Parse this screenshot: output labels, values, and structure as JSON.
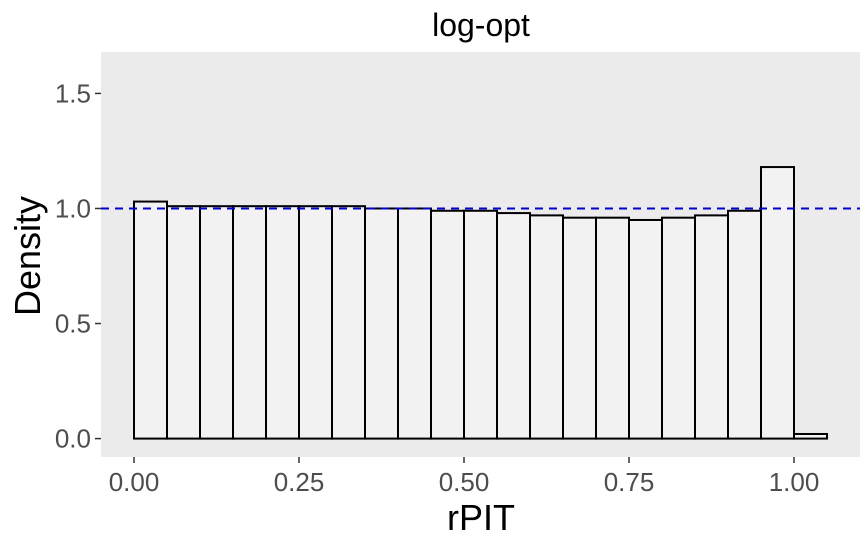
{
  "chart_data": {
    "type": "bar",
    "subtype": "histogram",
    "title": "log-opt",
    "xlabel": "rPIT",
    "ylabel": "Density",
    "xlim": [
      -0.05,
      1.1
    ],
    "ylim": [
      -0.08,
      1.68
    ],
    "x_ticks": [
      "0.00",
      "0.25",
      "0.50",
      "0.75",
      "1.00"
    ],
    "y_ticks": [
      "0.0",
      "0.5",
      "1.0",
      "1.5"
    ],
    "bin_width": 0.05,
    "bins": [
      {
        "x0": 0.0,
        "x1": 0.05,
        "density": 1.03
      },
      {
        "x0": 0.05,
        "x1": 0.1,
        "density": 1.01
      },
      {
        "x0": 0.1,
        "x1": 0.15,
        "density": 1.01
      },
      {
        "x0": 0.15,
        "x1": 0.2,
        "density": 1.01
      },
      {
        "x0": 0.2,
        "x1": 0.25,
        "density": 1.01
      },
      {
        "x0": 0.25,
        "x1": 0.3,
        "density": 1.01
      },
      {
        "x0": 0.3,
        "x1": 0.35,
        "density": 1.01
      },
      {
        "x0": 0.35,
        "x1": 0.4,
        "density": 1.0
      },
      {
        "x0": 0.4,
        "x1": 0.45,
        "density": 1.0
      },
      {
        "x0": 0.45,
        "x1": 0.5,
        "density": 0.99
      },
      {
        "x0": 0.5,
        "x1": 0.55,
        "density": 0.99
      },
      {
        "x0": 0.55,
        "x1": 0.6,
        "density": 0.98
      },
      {
        "x0": 0.6,
        "x1": 0.65,
        "density": 0.97
      },
      {
        "x0": 0.65,
        "x1": 0.7,
        "density": 0.96
      },
      {
        "x0": 0.7,
        "x1": 0.75,
        "density": 0.96
      },
      {
        "x0": 0.75,
        "x1": 0.8,
        "density": 0.95
      },
      {
        "x0": 0.8,
        "x1": 0.85,
        "density": 0.96
      },
      {
        "x0": 0.85,
        "x1": 0.9,
        "density": 0.97
      },
      {
        "x0": 0.9,
        "x1": 0.95,
        "density": 0.99
      },
      {
        "x0": 0.95,
        "x1": 1.0,
        "density": 1.18
      },
      {
        "x0": 1.0,
        "x1": 1.05,
        "density": 0.02
      }
    ],
    "reference_line": {
      "y": 1.0,
      "style": "dashed",
      "color": "#0000cc"
    },
    "colors": {
      "panel": "#ebebeb",
      "bar_fill": "#f2f2f2",
      "bar_outline": "#000000"
    },
    "grid": false,
    "legend": "none"
  }
}
